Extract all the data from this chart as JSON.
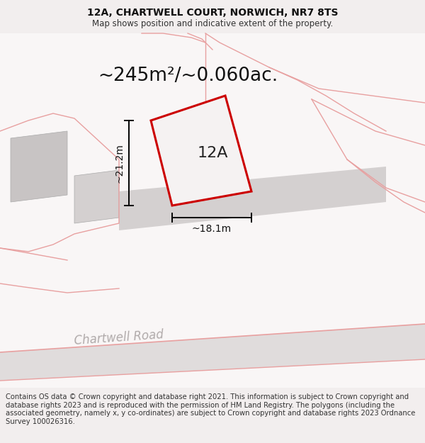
{
  "title_line1": "12A, CHARTWELL COURT, NORWICH, NR7 8TS",
  "title_line2": "Map shows position and indicative extent of the property.",
  "area_text": "~245m²/~0.060ac.",
  "label_12A": "12A",
  "dim_height": "~21.2m",
  "dim_width": "~18.1m",
  "road_label": "Chartwell Road",
  "footer_text": "Contains OS data © Crown copyright and database right 2021. This information is subject to Crown copyright and database rights 2023 and is reproduced with the permission of HM Land Registry. The polygons (including the associated geometry, namely x, y co-ordinates) are subject to Crown copyright and database rights 2023 Ordnance Survey 100026316.",
  "bg_color": "#f2eeee",
  "map_bg": "#f9f6f6",
  "plot_outline": "#cc0000",
  "pink_line": "#e8a0a0",
  "gray_fill": "#d0cccc",
  "light_gray": "#dedad9",
  "title_fontsize": 10,
  "subtitle_fontsize": 8.5,
  "area_fontsize": 19,
  "label_fontsize": 16,
  "dim_fontsize": 10,
  "footer_fontsize": 7.2,
  "road_fontsize": 12
}
